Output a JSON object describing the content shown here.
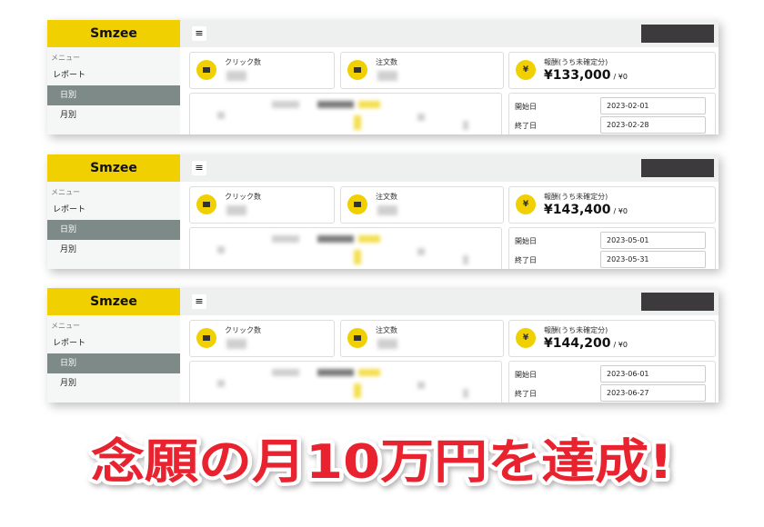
{
  "panels": [
    {
      "brand": "Smzee",
      "menu_label": "メニュー",
      "menu": [
        "レポート",
        "日別",
        "月別"
      ],
      "stats": [
        {
          "label": "クリック数"
        },
        {
          "label": "注文数"
        },
        {
          "label": "報酬(うち未確定分)",
          "icon": "¥",
          "value": "¥133,000",
          "sub": "/ ¥0"
        }
      ],
      "dates": [
        {
          "label": "開始日",
          "value": "2023-02-01"
        },
        {
          "label": "終了日",
          "value": "2023-02-28"
        }
      ]
    },
    {
      "brand": "Smzee",
      "menu_label": "メニュー",
      "menu": [
        "レポート",
        "日別",
        "月別"
      ],
      "stats": [
        {
          "label": "クリック数"
        },
        {
          "label": "注文数"
        },
        {
          "label": "報酬(うち未確定分)",
          "icon": "¥",
          "value": "¥143,400",
          "sub": "/ ¥0"
        }
      ],
      "dates": [
        {
          "label": "開始日",
          "value": "2023-05-01"
        },
        {
          "label": "終了日",
          "value": "2023-05-31"
        }
      ]
    },
    {
      "brand": "Smzee",
      "menu_label": "メニュー",
      "menu": [
        "レポート",
        "日別",
        "月別"
      ],
      "stats": [
        {
          "label": "クリック数"
        },
        {
          "label": "注文数"
        },
        {
          "label": "報酬(うち未確定分)",
          "icon": "¥",
          "value": "¥144,200",
          "sub": "/ ¥0"
        }
      ],
      "dates": [
        {
          "label": "開始日",
          "value": "2023-06-01"
        },
        {
          "label": "終了日",
          "value": "2023-06-27"
        }
      ]
    }
  ],
  "caption": "念願の月10万円を達成!"
}
